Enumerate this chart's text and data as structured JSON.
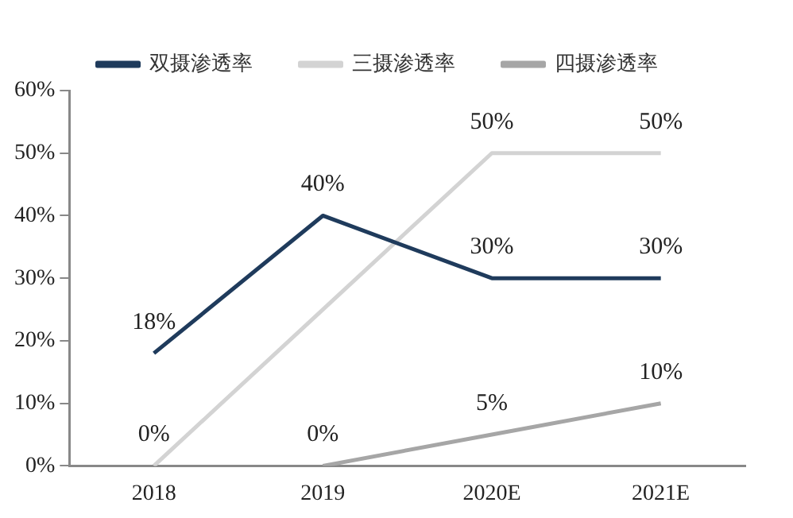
{
  "chart_data": {
    "type": "line",
    "categories": [
      "2018",
      "2019",
      "2020E",
      "2021E"
    ],
    "series": [
      {
        "name": "双摄渗透率",
        "color": "#1f3b5c",
        "values": [
          18,
          40,
          30,
          30
        ],
        "value_labels": [
          "18%",
          "40%",
          "30%",
          "30%"
        ]
      },
      {
        "name": "三摄渗透率",
        "color": "#d3d3d3",
        "values": [
          0,
          25,
          50,
          50
        ],
        "value_labels": [
          "0%",
          null,
          "50%",
          "50%"
        ]
      },
      {
        "name": "四摄渗透率",
        "color": "#a6a6a6",
        "values": [
          null,
          0,
          5,
          10
        ],
        "value_labels": [
          null,
          "0%",
          "5%",
          "10%"
        ]
      }
    ],
    "ylim": [
      0,
      60
    ],
    "yticks": [
      {
        "value": 0,
        "label": "0%"
      },
      {
        "value": 10,
        "label": "10%"
      },
      {
        "value": 20,
        "label": "20%"
      },
      {
        "value": 30,
        "label": "30%"
      },
      {
        "value": 40,
        "label": "40%"
      },
      {
        "value": 50,
        "label": "50%"
      },
      {
        "value": 60,
        "label": "60%"
      }
    ],
    "grid": false,
    "legend": "top",
    "marker": "none",
    "line_style": "solid"
  }
}
